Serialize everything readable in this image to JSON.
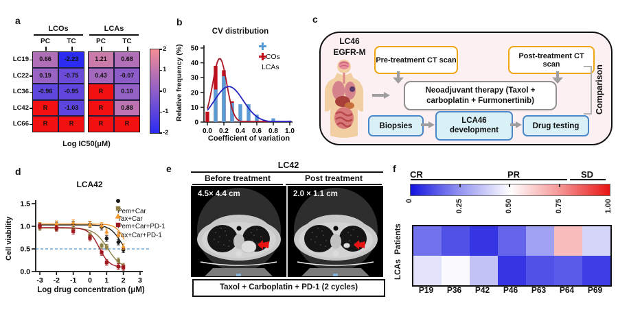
{
  "panel_a": {
    "label": "a"
  },
  "panel_b": {
    "label": "b"
  },
  "panel_c": {
    "label": "c",
    "model_line1": "LC46",
    "model_line2": "EGFR-M",
    "pre_ct": "Pre-treatment CT scan",
    "post_ct": "Post-treatment CT scan",
    "therapy_line1": "Neoadjuvant therapy (Taxol +",
    "therapy_line2": "carboplatin + Furmonertinib)",
    "biopsies": "Biopsies",
    "lca_dev_line1": "LCA46",
    "lca_dev_line2": "development",
    "drug_testing": "Drug testing",
    "comparison": "Comparison"
  },
  "panel_d": {
    "label": "d"
  },
  "panel_e": {
    "label": "e",
    "title": "LC42",
    "col_before": "Before treatment",
    "col_after": "Post treatment",
    "size_before": "4.5× 4.4 cm",
    "size_after": "2.0 × 1.1 cm",
    "treatment": "Taxol + Carboplatin + PD-1 (2 cycles)"
  },
  "panel_f": {
    "label": "f"
  },
  "chart_data": [
    {
      "panel": "a",
      "type": "heatmap",
      "title": "Log IC50(μM)",
      "col_groups": [
        "LCOs",
        "LCAs"
      ],
      "columns": [
        "PC",
        "TC",
        "PC",
        "TC"
      ],
      "rows": [
        "LC19",
        "LC22",
        "LC36",
        "LC42",
        "LC66"
      ],
      "values": [
        [
          "0.66",
          "-2.23",
          "1.21",
          "0.68"
        ],
        [
          "0.19",
          "-0.75",
          "0.43",
          "-0.07"
        ],
        [
          "-0.96",
          "-0.95",
          "R",
          "0.10"
        ],
        [
          "R",
          "-1.03",
          "R",
          "0.88"
        ],
        [
          "R",
          "R",
          "R",
          "R"
        ]
      ],
      "resistant_code": "R",
      "colorbar": {
        "min": -2,
        "max": 2,
        "ticks": [
          "2",
          "1",
          "0",
          "-1",
          "-2"
        ],
        "colors": {
          "low": "#2b2bf2",
          "mid": "#8f5fc8",
          "high": "#f28d95",
          "resistant": "#f21010"
        }
      }
    },
    {
      "panel": "b",
      "type": "bar",
      "title": "CV distribution",
      "xlabel": "Coefficient of variation",
      "ylabel": "Relative frequency (%)",
      "ylim": [
        0,
        50
      ],
      "yticks": [
        "0",
        "10",
        "20",
        "30",
        "40",
        "50"
      ],
      "xticks": [
        "0.0",
        "0.2",
        "0.4",
        "0.6",
        "0.8",
        "1.0"
      ],
      "x": [
        0,
        0.1,
        0.2,
        0.3,
        0.4,
        0.5,
        0.6,
        0.7,
        0.8,
        0.9,
        1.0
      ],
      "series": [
        {
          "name": "LCAs",
          "color": "#c2101c",
          "values": [
            7,
            38,
            35,
            14,
            0,
            0,
            0,
            0,
            0,
            0,
            0
          ]
        },
        {
          "name": "LCOs",
          "color": "#5b9bd5",
          "values": [
            0,
            22,
            31,
            13,
            12,
            12,
            5,
            0,
            2.5,
            0,
            1
          ]
        }
      ],
      "fit_curves": [
        {
          "name": "LCAs",
          "color": "#aa1522",
          "peak": 43,
          "mean": 0.15,
          "sd": 0.085
        },
        {
          "name": "LCOs",
          "color": "#2424c0",
          "peak": 24,
          "mean": 0.26,
          "sd": 0.175
        }
      ],
      "legend": [
        "LCOs",
        "LCAs"
      ],
      "legend_colors": [
        "#5b9bd5",
        "#c2101c"
      ],
      "legend_position": "top-right"
    },
    {
      "panel": "d",
      "type": "line",
      "title": "LCA42",
      "xlabel": "Log drug concentration (μM)",
      "ylabel": "Cell viability",
      "ylim": [
        0,
        1.5
      ],
      "yticks": [
        "0.0",
        "0.5",
        "1.0",
        "1.5"
      ],
      "xticks": [
        "-3",
        "-2",
        "-1",
        "0",
        "1",
        "2",
        "3"
      ],
      "x": [
        -3,
        -2,
        -1,
        0,
        0.7,
        1,
        1.7,
        2
      ],
      "series": [
        {
          "name": "Pem+Car",
          "color": "#1a1a1a",
          "marker": "circle",
          "values": [
            1.02,
            1.03,
            1.05,
            1.04,
            0.98,
            0.73,
            0.65,
            0.48
          ],
          "fit": {
            "top": 1.03,
            "bottom": 0.28,
            "logIC50": 1.85,
            "hill": 1.3
          }
        },
        {
          "name": "Tax+Car",
          "color": "#8f8045",
          "marker": "square",
          "values": [
            0.97,
            0.95,
            0.93,
            0.8,
            0.57,
            0.54,
            0.24,
            0.12
          ],
          "fit": {
            "top": 0.96,
            "bottom": 0.07,
            "logIC50": 1.05,
            "hill": 1.1
          }
        },
        {
          "name": "Pem+Car+PD-1",
          "color": "#f0962c",
          "marker": "triangle",
          "values": [
            1.02,
            1.06,
            1.08,
            1.05,
            1.02,
            0.88,
            0.82,
            0.55
          ],
          "fit": {
            "top": 1.05,
            "bottom": 0.3,
            "logIC50": 2.1,
            "hill": 1.6
          }
        },
        {
          "name": "Tax+Car+PD-1",
          "color": "#a01820",
          "marker": "square",
          "values": [
            1.0,
            0.96,
            0.89,
            0.74,
            0.42,
            0.2,
            0.11,
            0.09
          ],
          "fit": {
            "top": 0.97,
            "bottom": 0.09,
            "logIC50": 0.55,
            "hill": 1.4
          }
        }
      ],
      "reference_line": {
        "y": 0.5,
        "style": "dashed",
        "color": "#4a90d8"
      }
    },
    {
      "panel": "f",
      "type": "heatmap",
      "columns": [
        "P19",
        "P36",
        "P42",
        "P46",
        "P63",
        "P64",
        "P69"
      ],
      "rows": [
        "Patients",
        "LCAs"
      ],
      "values": [
        [
          0.2,
          0.13,
          0.07,
          0.17,
          0.3,
          0.64,
          0.41
        ],
        [
          0.44,
          0.49,
          0.37,
          0.07,
          0.13,
          0.15,
          0.09
        ]
      ],
      "colorbar": {
        "min": 0,
        "max": 1,
        "ticks": [
          "0",
          "0.25",
          "0.50",
          "0.75",
          "1.00"
        ],
        "zone_labels": [
          "CR",
          "PR",
          "SD"
        ],
        "colors": {
          "low": "#1414e0",
          "mid": "#ffffff",
          "high": "#e81414"
        }
      }
    }
  ]
}
